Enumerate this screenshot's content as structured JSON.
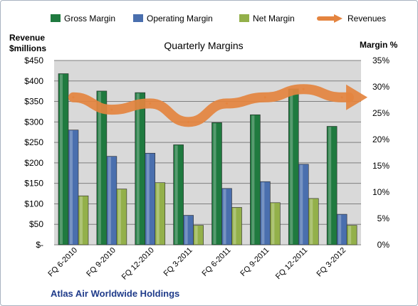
{
  "colors": {
    "plot_background": "#d9d9d9",
    "gross_margin": "#1f7a3f",
    "operating_margin": "#4a6fae",
    "net_margin": "#93b04a",
    "revenues": "#e4843f",
    "source_text": "#1f3b8a"
  },
  "chart_data": {
    "type": "bar",
    "title": "Quarterly Margins",
    "left_axis_title_line1": "Revenue",
    "left_axis_title_line2": "$millions",
    "right_axis_title": "Margin %",
    "categories": [
      "FQ 6-2010",
      "FQ 9-2010",
      "FQ 12-2010",
      "FQ 3-2011",
      "FQ 6-2011",
      "FQ 9-2011",
      "FQ 12-2011",
      "FQ 3-2012"
    ],
    "left_ticks": [
      "$-",
      "$50",
      "$100",
      "$150",
      "$200",
      "$250",
      "$300",
      "$350",
      "$400",
      "$450"
    ],
    "right_ticks": [
      "0%",
      "5%",
      "10%",
      "15%",
      "20%",
      "25%",
      "30%",
      "35%"
    ],
    "left_ylim": [
      0,
      450
    ],
    "right_ylim": [
      0,
      35
    ],
    "grid": true,
    "legend_position": "top",
    "series": [
      {
        "name": "Gross Margin",
        "axis": "right",
        "values": [
          32.5,
          29.2,
          28.9,
          19.0,
          23.2,
          24.7,
          29.6,
          22.5
        ]
      },
      {
        "name": "Operating Margin",
        "axis": "right",
        "values": [
          21.8,
          16.8,
          17.4,
          5.6,
          10.7,
          12.0,
          15.3,
          5.8
        ]
      },
      {
        "name": "Net Margin",
        "axis": "right",
        "values": [
          9.3,
          10.6,
          11.8,
          3.7,
          7.1,
          8.0,
          8.8,
          3.7
        ]
      },
      {
        "name": "Revenues",
        "axis": "left",
        "type": "line",
        "values": [
          360,
          330,
          345,
          300,
          345,
          360,
          380,
          360
        ]
      }
    ],
    "source_label": "Atlas Air Worldwide Holdings"
  }
}
